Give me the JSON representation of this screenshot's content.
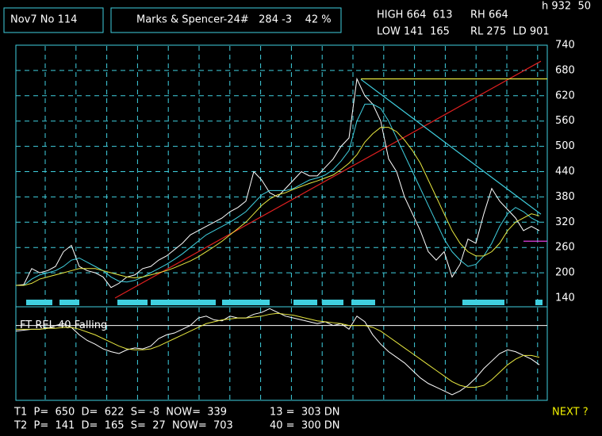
{
  "header": {
    "box1": "Nov7 No 114",
    "box2": "Marks & Spencer-24#   284 -3    42 %",
    "hi": "HIGH 664  613",
    "rh": "RH 664",
    "lo": "LOW 141  165",
    "rl": "RL 275  LD 901",
    "corner": "h 932  50"
  },
  "footer": {
    "t1": "T1  P=  650  D=  622  S= -8  NOW=  339",
    "m13": "13 =  303 DN",
    "t2": "T2  P=  141  D=  165  S=  27  NOW=  703",
    "m40": "40 =  300 DN",
    "next": "NEXT ?"
  },
  "chart_data": [
    {
      "type": "line",
      "ylim": [
        140,
        740
      ],
      "yticks": [
        140,
        200,
        260,
        320,
        380,
        440,
        500,
        560,
        620,
        680,
        740
      ],
      "grid": true,
      "series": [
        {
          "color": "#ffffff",
          "values": [
            170,
            172,
            210,
            200,
            205,
            215,
            250,
            265,
            215,
            205,
            200,
            190,
            165,
            175,
            190,
            195,
            210,
            215,
            230,
            240,
            255,
            270,
            290,
            300,
            310,
            320,
            330,
            345,
            355,
            370,
            440,
            420,
            390,
            380,
            400,
            420,
            440,
            430,
            430,
            450,
            470,
            500,
            520,
            660,
            620,
            600,
            560,
            470,
            440,
            380,
            340,
            300,
            250,
            230,
            250,
            190,
            220,
            280,
            270,
            340,
            400,
            370,
            350,
            330,
            300,
            310,
            300
          ]
        },
        {
          "color": "#40d0e0",
          "values": [
            170,
            170,
            185,
            195,
            200,
            205,
            215,
            230,
            235,
            225,
            215,
            205,
            190,
            180,
            178,
            182,
            190,
            200,
            210,
            220,
            232,
            245,
            260,
            275,
            290,
            300,
            310,
            320,
            332,
            345,
            365,
            385,
            395,
            395,
            395,
            400,
            410,
            420,
            425,
            432,
            445,
            465,
            490,
            560,
            600,
            600,
            590,
            560,
            520,
            480,
            440,
            400,
            360,
            320,
            280,
            250,
            230,
            215,
            220,
            240,
            270,
            310,
            340,
            355,
            345,
            330,
            320
          ]
        },
        {
          "color": "#e8e840",
          "values": [
            170,
            170,
            175,
            185,
            190,
            195,
            200,
            205,
            210,
            210,
            210,
            205,
            200,
            195,
            190,
            188,
            190,
            195,
            200,
            205,
            212,
            220,
            228,
            238,
            250,
            262,
            275,
            290,
            305,
            320,
            340,
            360,
            375,
            385,
            390,
            398,
            405,
            412,
            418,
            425,
            432,
            445,
            460,
            480,
            510,
            530,
            545,
            545,
            535,
            515,
            490,
            460,
            420,
            380,
            340,
            300,
            270,
            250,
            240,
            240,
            250,
            270,
            300,
            320,
            330,
            340,
            335
          ]
        }
      ],
      "lines": [
        {
          "color": "#e02020",
          "x": [
            12.5,
            66.2
          ],
          "values": [
            140,
            702
          ]
        },
        {
          "color": "#40d0e0",
          "x": [
            43.5,
            66.2
          ],
          "values": [
            659,
            339
          ]
        },
        {
          "color": "#e8e840",
          "x": [
            43.5,
            67
          ],
          "values": [
            660,
            660
          ]
        },
        {
          "color": "#e040e0",
          "x": [
            64,
            67
          ],
          "values": [
            275,
            275
          ]
        }
      ]
    },
    {
      "type": "line",
      "title": "FT REL 40 Falling",
      "ylim": [
        0,
        100
      ],
      "reference": 80,
      "series": [
        {
          "color": "#ffffff",
          "values": [
            74,
            75,
            76,
            76,
            77,
            80,
            82,
            78,
            70,
            64,
            60,
            55,
            52,
            50,
            54,
            56,
            55,
            58,
            66,
            70,
            72,
            76,
            80,
            88,
            90,
            86,
            85,
            90,
            88,
            88,
            92,
            94,
            98,
            94,
            90,
            88,
            86,
            84,
            82,
            84,
            80,
            82,
            76,
            90,
            84,
            70,
            60,
            52,
            46,
            40,
            32,
            24,
            18,
            14,
            10,
            6,
            10,
            16,
            24,
            34,
            42,
            50,
            54,
            52,
            48,
            44,
            38
          ]
        },
        {
          "color": "#e8e840",
          "values": [
            76,
            76,
            76,
            76,
            77,
            77,
            78,
            78,
            76,
            73,
            70,
            66,
            62,
            58,
            55,
            54,
            54,
            55,
            58,
            62,
            66,
            70,
            74,
            78,
            82,
            84,
            86,
            87,
            88,
            88,
            89,
            90,
            92,
            93,
            92,
            91,
            89,
            87,
            85,
            84,
            83,
            82,
            80,
            80,
            80,
            78,
            74,
            68,
            62,
            56,
            50,
            44,
            38,
            32,
            26,
            20,
            16,
            14,
            14,
            16,
            22,
            30,
            38,
            44,
            48,
            48,
            46
          ]
        }
      ]
    }
  ]
}
